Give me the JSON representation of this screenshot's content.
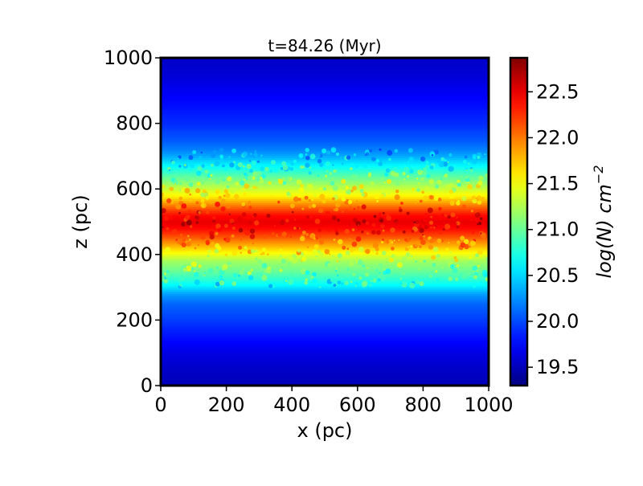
{
  "chart_data": {
    "type": "heatmap",
    "title": "t=84.26 (Myr)",
    "xlabel": "x (pc)",
    "ylabel": "z (pc)",
    "xlim": [
      0,
      1000
    ],
    "ylim": [
      0,
      1000
    ],
    "x_ticks": [
      0,
      200,
      400,
      600,
      800,
      1000
    ],
    "y_ticks": [
      0,
      200,
      400,
      600,
      800,
      1000
    ],
    "colorbar": {
      "label": "log(N) cm⁻²",
      "label_base": "log(N) cm",
      "label_exp": "−2",
      "range": [
        19.3,
        22.87
      ],
      "ticks": [
        "19.5",
        "20.0",
        "20.5",
        "21.0",
        "21.5",
        "22.0",
        "22.5"
      ],
      "colormap": "jet"
    },
    "profile": {
      "z": [
        0,
        50,
        100,
        150,
        200,
        250,
        280,
        300,
        320,
        350,
        380,
        400,
        420,
        440,
        460,
        480,
        500,
        520,
        540,
        560,
        580,
        600,
        620,
        640,
        660,
        680,
        700,
        720,
        750,
        800,
        850,
        900,
        950,
        1000
      ],
      "value": [
        19.5,
        19.55,
        19.65,
        19.8,
        19.95,
        20.1,
        20.3,
        20.55,
        20.75,
        21.0,
        21.2,
        21.45,
        21.7,
        21.95,
        22.2,
        22.4,
        22.5,
        22.4,
        22.15,
        21.85,
        21.55,
        21.35,
        21.15,
        20.95,
        20.75,
        20.55,
        20.35,
        20.2,
        20.05,
        19.9,
        19.8,
        19.7,
        19.6,
        19.55
      ]
    },
    "grid": false,
    "colors": {
      "frame": "#000000",
      "background": "#ffffff"
    }
  }
}
